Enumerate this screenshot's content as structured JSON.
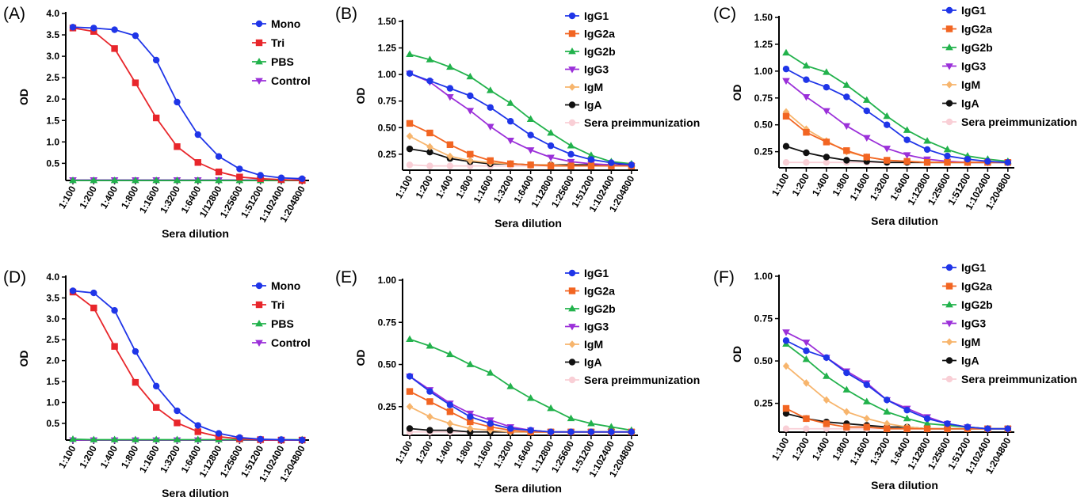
{
  "chart_data": [
    {
      "panel": "(A)",
      "type": "line",
      "categories": [
        "1:100",
        "1:200",
        "1:400",
        "1:800",
        "1:1600",
        "1:3200",
        "1:6400",
        "1/12800",
        "1:25600",
        "1:51200",
        "1:102400",
        "1:204800"
      ],
      "xlabel": "Sera dilution",
      "ylabel": "OD",
      "ylim": [
        0.1,
        4.0
      ],
      "yticks": [
        0.5,
        1.0,
        1.5,
        2.0,
        2.5,
        3.0,
        3.5,
        4.0
      ],
      "yfmt": 1,
      "legend_position": "top-right",
      "series": [
        {
          "name": "Mono",
          "color": "#1f35e8",
          "marker": "circle",
          "values": [
            3.68,
            3.66,
            3.62,
            3.48,
            2.91,
            1.93,
            1.17,
            0.66,
            0.37,
            0.22,
            0.16,
            0.14
          ]
        },
        {
          "name": "Tri",
          "color": "#e8262b",
          "marker": "square",
          "values": [
            3.66,
            3.58,
            3.18,
            2.38,
            1.56,
            0.89,
            0.52,
            0.3,
            0.18,
            0.14,
            0.12,
            0.1
          ]
        },
        {
          "name": "PBS",
          "color": "#22b24c",
          "marker": "triangle-up",
          "values": [
            0.1,
            0.1,
            0.1,
            0.1,
            0.1,
            0.1,
            0.1,
            0.1,
            0.1,
            0.1,
            0.1,
            0.1
          ]
        },
        {
          "name": "Control",
          "color": "#9b30d9",
          "marker": "triangle-down",
          "values": [
            0.11,
            0.11,
            0.11,
            0.11,
            0.11,
            0.11,
            0.11,
            0.11,
            0.11,
            0.11,
            0.11,
            0.11
          ]
        }
      ]
    },
    {
      "panel": "(B)",
      "type": "line",
      "categories": [
        "1:100",
        "1:200",
        "1:400",
        "1:800",
        "1:1600",
        "1:3200",
        "1:6400",
        "1:12800",
        "1:25600",
        "1:51200",
        "1:102400",
        "1:204800"
      ],
      "xlabel": "Sera dilution",
      "ylabel": "OD",
      "ylim": [
        0.1,
        1.5
      ],
      "yticks": [
        0.25,
        0.5,
        0.75,
        1.0,
        1.25,
        1.5
      ],
      "yfmt": 2,
      "legend_position": "top-right",
      "series": [
        {
          "name": "IgG1",
          "color": "#1f35e8",
          "marker": "circle",
          "values": [
            1.01,
            0.94,
            0.87,
            0.8,
            0.69,
            0.56,
            0.43,
            0.33,
            0.25,
            0.2,
            0.17,
            0.15
          ]
        },
        {
          "name": "IgG2a",
          "color": "#f26522",
          "marker": "square",
          "values": [
            0.54,
            0.45,
            0.34,
            0.25,
            0.19,
            0.16,
            0.15,
            0.14,
            0.14,
            0.14,
            0.14,
            0.14
          ]
        },
        {
          "name": "IgG2b",
          "color": "#22b24c",
          "marker": "triangle-up",
          "values": [
            1.19,
            1.14,
            1.07,
            0.98,
            0.85,
            0.73,
            0.58,
            0.45,
            0.33,
            0.24,
            0.18,
            0.16
          ]
        },
        {
          "name": "IgG3",
          "color": "#9b30d9",
          "marker": "triangle-down",
          "values": [
            1.01,
            0.93,
            0.79,
            0.66,
            0.51,
            0.38,
            0.29,
            0.22,
            0.18,
            0.16,
            0.15,
            0.14
          ]
        },
        {
          "name": "IgM",
          "color": "#f7b56d",
          "marker": "diamond",
          "values": [
            0.42,
            0.32,
            0.23,
            0.19,
            0.17,
            0.16,
            0.15,
            0.15,
            0.14,
            0.14,
            0.14,
            0.14
          ]
        },
        {
          "name": "IgA",
          "color": "#111111",
          "marker": "circle",
          "values": [
            0.3,
            0.27,
            0.21,
            0.18,
            0.16,
            0.16,
            0.15,
            0.15,
            0.15,
            0.15,
            0.15,
            0.15
          ]
        },
        {
          "name": "Sera preimmunization",
          "color": "#f9cfd6",
          "marker": "circle",
          "values": [
            0.15,
            0.14,
            0.14,
            0.14,
            0.14,
            0.14,
            0.14,
            0.14,
            0.14,
            0.14,
            0.14,
            0.14
          ]
        }
      ]
    },
    {
      "panel": "(C)",
      "type": "line",
      "categories": [
        "1:100",
        "1:200",
        "1:400",
        "1:800",
        "1:1600",
        "1:3200",
        "1:6400",
        "1:12800",
        "1:25600",
        "1:51200",
        "1:102400",
        "1:204800"
      ],
      "xlabel": "Sera dilution",
      "ylabel": "OD",
      "ylim": [
        0.1,
        1.5
      ],
      "yticks": [
        0.25,
        0.5,
        0.75,
        1.0,
        1.25,
        1.5
      ],
      "yfmt": 2,
      "legend_position": "top-right",
      "series": [
        {
          "name": "IgG1",
          "color": "#1f35e8",
          "marker": "circle",
          "values": [
            1.02,
            0.92,
            0.85,
            0.76,
            0.63,
            0.5,
            0.36,
            0.27,
            0.21,
            0.18,
            0.16,
            0.15
          ]
        },
        {
          "name": "IgG2a",
          "color": "#f26522",
          "marker": "square",
          "values": [
            0.58,
            0.43,
            0.34,
            0.26,
            0.2,
            0.17,
            0.16,
            0.15,
            0.15,
            0.15,
            0.15,
            0.15
          ]
        },
        {
          "name": "IgG2b",
          "color": "#22b24c",
          "marker": "triangle-up",
          "values": [
            1.17,
            1.05,
            0.99,
            0.87,
            0.73,
            0.58,
            0.45,
            0.35,
            0.27,
            0.21,
            0.18,
            0.16
          ]
        },
        {
          "name": "IgG3",
          "color": "#9b30d9",
          "marker": "triangle-down",
          "values": [
            0.91,
            0.76,
            0.63,
            0.49,
            0.38,
            0.28,
            0.22,
            0.18,
            0.16,
            0.15,
            0.15,
            0.15
          ]
        },
        {
          "name": "IgM",
          "color": "#f7b56d",
          "marker": "diamond",
          "values": [
            0.62,
            0.46,
            0.35,
            0.25,
            0.2,
            0.17,
            0.16,
            0.15,
            0.15,
            0.15,
            0.15,
            0.15
          ]
        },
        {
          "name": "IgA",
          "color": "#111111",
          "marker": "circle",
          "values": [
            0.3,
            0.24,
            0.2,
            0.17,
            0.16,
            0.15,
            0.15,
            0.15,
            0.15,
            0.15,
            0.15,
            0.15
          ]
        },
        {
          "name": "Sera preimmunization",
          "color": "#f9cfd6",
          "marker": "circle",
          "values": [
            0.15,
            0.15,
            0.15,
            0.15,
            0.15,
            0.15,
            0.15,
            0.15,
            0.15,
            0.15,
            0.15,
            0.15
          ]
        }
      ]
    },
    {
      "panel": "(D)",
      "type": "line",
      "categories": [
        "1:100",
        "1:200",
        "1:400",
        "1:800",
        "1:1600",
        "1:3200",
        "1:6400",
        "1:12800",
        "1:25600",
        "1:51200",
        "1:102400",
        "1:204800"
      ],
      "xlabel": "Sera dilution",
      "ylabel": "OD",
      "ylim": [
        0.1,
        4.0
      ],
      "yticks": [
        0.5,
        1.0,
        1.5,
        2.0,
        2.5,
        3.0,
        3.5,
        4.0
      ],
      "yfmt": 1,
      "legend_position": "top-right",
      "series": [
        {
          "name": "Mono",
          "color": "#1f35e8",
          "marker": "circle",
          "values": [
            3.67,
            3.62,
            3.2,
            2.22,
            1.39,
            0.8,
            0.45,
            0.26,
            0.16,
            0.12,
            0.11,
            0.1
          ]
        },
        {
          "name": "Tri",
          "color": "#e8262b",
          "marker": "square",
          "values": [
            3.64,
            3.26,
            2.34,
            1.48,
            0.88,
            0.51,
            0.3,
            0.18,
            0.13,
            0.11,
            0.1,
            0.1
          ]
        },
        {
          "name": "PBS",
          "color": "#22b24c",
          "marker": "triangle-up",
          "values": [
            0.12,
            0.11,
            0.11,
            0.11,
            0.11,
            0.11,
            0.11,
            0.11,
            0.11,
            0.11,
            0.11,
            0.11
          ]
        },
        {
          "name": "Control",
          "color": "#9b30d9",
          "marker": "triangle-down",
          "values": [
            0.1,
            0.1,
            0.1,
            0.1,
            0.1,
            0.1,
            0.1,
            0.1,
            0.1,
            0.1,
            0.1,
            0.1
          ]
        }
      ]
    },
    {
      "panel": "(E)",
      "type": "line",
      "categories": [
        "1:100",
        "1:200",
        "1:400",
        "1:800",
        "1:1600",
        "1:3200",
        "1:6400",
        "1:12800",
        "1:25600",
        "1:51200",
        "1:102400",
        "1:204800"
      ],
      "xlabel": "Sera dilution",
      "ylabel": "OD",
      "ylim": [
        0.08,
        1.0
      ],
      "yticks": [
        0.25,
        0.5,
        0.75,
        1.0
      ],
      "yfmt": 2,
      "legend_position": "top-right",
      "series": [
        {
          "name": "IgG1",
          "color": "#1f35e8",
          "marker": "circle",
          "values": [
            0.43,
            0.34,
            0.26,
            0.19,
            0.15,
            0.12,
            0.11,
            0.1,
            0.1,
            0.1,
            0.1,
            0.1
          ]
        },
        {
          "name": "IgG2a",
          "color": "#f26522",
          "marker": "square",
          "values": [
            0.34,
            0.28,
            0.22,
            0.16,
            0.13,
            0.11,
            0.1,
            0.1,
            0.1,
            0.1,
            0.1,
            0.1
          ]
        },
        {
          "name": "IgG2b",
          "color": "#22b24c",
          "marker": "triangle-up",
          "values": [
            0.65,
            0.61,
            0.56,
            0.5,
            0.45,
            0.37,
            0.3,
            0.24,
            0.18,
            0.15,
            0.13,
            0.11
          ]
        },
        {
          "name": "IgG3",
          "color": "#9b30d9",
          "marker": "triangle-down",
          "values": [
            0.43,
            0.35,
            0.27,
            0.21,
            0.17,
            0.13,
            0.11,
            0.1,
            0.1,
            0.1,
            0.1,
            0.1
          ]
        },
        {
          "name": "IgM",
          "color": "#f7b56d",
          "marker": "diamond",
          "values": [
            0.25,
            0.19,
            0.15,
            0.12,
            0.11,
            0.1,
            0.1,
            0.1,
            0.1,
            0.1,
            0.1,
            0.1
          ]
        },
        {
          "name": "IgA",
          "color": "#111111",
          "marker": "circle",
          "values": [
            0.12,
            0.11,
            0.11,
            0.1,
            0.1,
            0.1,
            0.1,
            0.1,
            0.1,
            0.1,
            0.1,
            0.1
          ]
        },
        {
          "name": "Sera preimmunization",
          "color": "#f9cfd6",
          "marker": "circle",
          "values": [
            0.1,
            0.1,
            0.1,
            0.1,
            0.1,
            0.1,
            0.1,
            0.1,
            0.1,
            0.1,
            0.1,
            0.1
          ]
        }
      ]
    },
    {
      "panel": "(F)",
      "type": "line",
      "categories": [
        "1:100",
        "1:200",
        "1:400",
        "1:800",
        "1:1600",
        "1:3200",
        "1:6400",
        "1:12800",
        "1:25600",
        "1:51200",
        "1:102400",
        "1:204800"
      ],
      "xlabel": "Sera dilution",
      "ylabel": "OD",
      "ylim": [
        0.08,
        1.0
      ],
      "yticks": [
        0.25,
        0.5,
        0.75,
        1.0
      ],
      "yfmt": 2,
      "legend_position": "top-right",
      "series": [
        {
          "name": "IgG1",
          "color": "#1f35e8",
          "marker": "circle",
          "values": [
            0.62,
            0.56,
            0.52,
            0.43,
            0.36,
            0.27,
            0.21,
            0.16,
            0.13,
            0.11,
            0.1,
            0.1
          ]
        },
        {
          "name": "IgG2a",
          "color": "#f26522",
          "marker": "square",
          "values": [
            0.22,
            0.16,
            0.13,
            0.11,
            0.11,
            0.1,
            0.1,
            0.1,
            0.1,
            0.1,
            0.1,
            0.1
          ]
        },
        {
          "name": "IgG2b",
          "color": "#22b24c",
          "marker": "triangle-up",
          "values": [
            0.6,
            0.51,
            0.41,
            0.33,
            0.26,
            0.2,
            0.16,
            0.13,
            0.12,
            0.11,
            0.1,
            0.1
          ]
        },
        {
          "name": "IgG3",
          "color": "#9b30d9",
          "marker": "triangle-down",
          "values": [
            0.67,
            0.61,
            0.52,
            0.44,
            0.37,
            0.27,
            0.22,
            0.17,
            0.13,
            0.11,
            0.1,
            0.1
          ]
        },
        {
          "name": "IgM",
          "color": "#f7b56d",
          "marker": "diamond",
          "values": [
            0.47,
            0.37,
            0.27,
            0.2,
            0.16,
            0.13,
            0.11,
            0.1,
            0.1,
            0.1,
            0.1,
            0.1
          ]
        },
        {
          "name": "IgA",
          "color": "#111111",
          "marker": "circle",
          "values": [
            0.19,
            0.16,
            0.14,
            0.13,
            0.12,
            0.11,
            0.11,
            0.1,
            0.1,
            0.1,
            0.1,
            0.1
          ]
        },
        {
          "name": "Sera preimmunization",
          "color": "#f9cfd6",
          "marker": "circle",
          "values": [
            0.1,
            0.1,
            0.1,
            0.1,
            0.1,
            0.1,
            0.1,
            0.1,
            0.1,
            0.1,
            0.1,
            0.1
          ]
        }
      ]
    }
  ]
}
